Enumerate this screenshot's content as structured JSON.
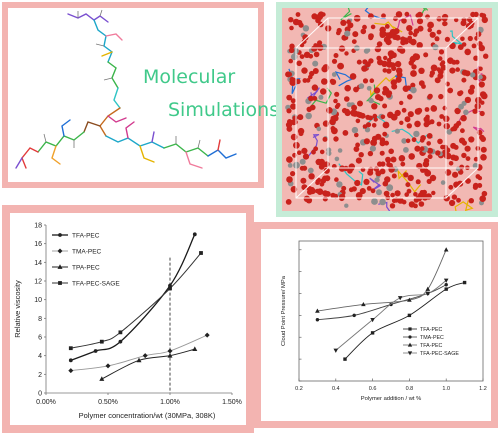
{
  "molecular": {
    "title_line1": "Molecular",
    "title_line2": "Simulations"
  },
  "colors": {
    "frame_pink": "#f3b4b1",
    "sim_green_border": "#c5ecd7",
    "molecule_text_green": "#40c98a",
    "atom_red": "#c8221c"
  },
  "chart_data": [
    {
      "type": "line",
      "title": "",
      "xlabel": "Polymer concentration/wt  (30MPa, 308K)",
      "ylabel": "Relative viscosity",
      "xlim": [
        0,
        1.5
      ],
      "ylim": [
        0,
        18
      ],
      "x_ticks": [
        "0.00%",
        "0.50%",
        "1.00%",
        "1.50%"
      ],
      "y_ticks": [
        "0",
        "2",
        "4",
        "6",
        "8",
        "10",
        "12",
        "14",
        "16",
        "18"
      ],
      "reference_line_x": 1.0,
      "legend_position": "top-left",
      "series": [
        {
          "name": "TFA-PEC",
          "marker": "circle",
          "x": [
            0.2,
            0.4,
            0.6,
            1.0,
            1.2
          ],
          "y": [
            3.5,
            4.5,
            5.5,
            11.5,
            17
          ]
        },
        {
          "name": "TMA-PEC",
          "marker": "diamond",
          "x": [
            0.2,
            0.5,
            0.8,
            1.0,
            1.3
          ],
          "y": [
            2.4,
            2.9,
            4.0,
            4.5,
            6.2
          ]
        },
        {
          "name": "TPA-PEC",
          "marker": "triangle",
          "x": [
            0.45,
            0.75,
            1.0,
            1.2
          ],
          "y": [
            1.5,
            3.5,
            4.0,
            4.7
          ]
        },
        {
          "name": "TFA-PEC-SAGE",
          "marker": "square",
          "x": [
            0.2,
            0.45,
            0.6,
            1.0,
            1.25
          ],
          "y": [
            4.8,
            5.5,
            6.5,
            11.2,
            15
          ]
        }
      ]
    },
    {
      "type": "line",
      "title": "",
      "xlabel": "Polymer addition / wt %",
      "ylabel": "Cloud Point Pressure/ MPa",
      "xlim": [
        0.2,
        1.2
      ],
      "ylim": [
        5,
        37
      ],
      "x_ticks": [
        "0.2",
        "0.4",
        "0.6",
        "0.8",
        "1.0",
        "1.2"
      ],
      "legend_position": "bottom-right",
      "series": [
        {
          "name": "TFA-PEC",
          "marker": "square",
          "x": [
            0.45,
            0.6,
            0.8,
            1.0,
            1.1
          ],
          "y": [
            10,
            16,
            20,
            26,
            27.5
          ]
        },
        {
          "name": "TMA-PEC",
          "marker": "circle",
          "x": [
            0.3,
            0.5,
            0.7,
            0.9,
            1.0
          ],
          "y": [
            19,
            20,
            22.5,
            25,
            27
          ]
        },
        {
          "name": "TFA-PEC",
          "marker": "triangle",
          "x": [
            0.3,
            0.55,
            0.8,
            0.9,
            1.0
          ],
          "y": [
            21,
            22.5,
            23.5,
            26,
            35
          ]
        },
        {
          "name": "TFA-PEC-SAGE",
          "marker": "triangle-down",
          "x": [
            0.4,
            0.6,
            0.75,
            0.9,
            1.0
          ],
          "y": [
            12,
            19,
            24,
            25,
            28
          ]
        }
      ]
    }
  ]
}
